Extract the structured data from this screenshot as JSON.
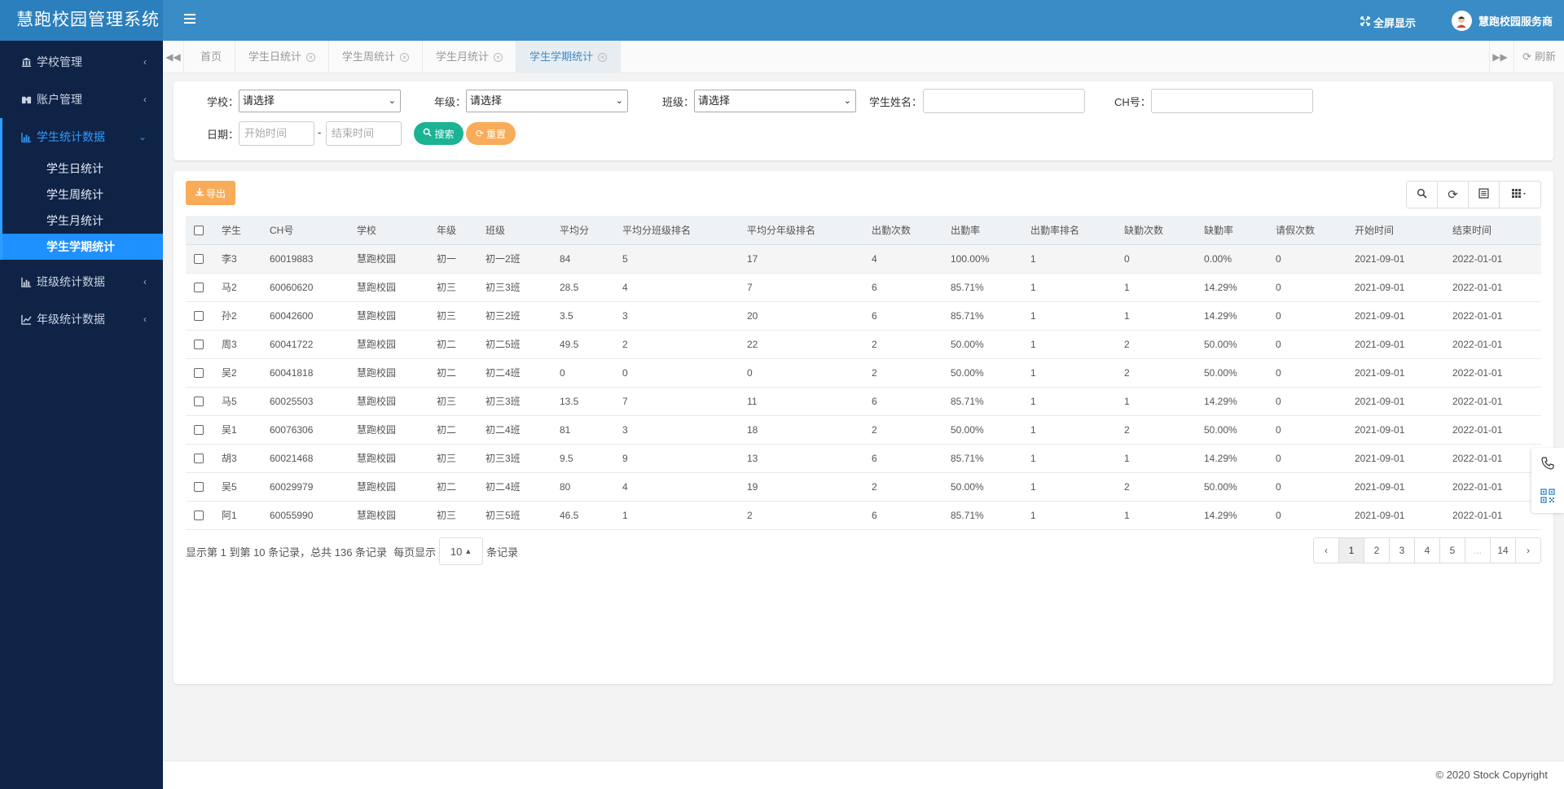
{
  "brand": "慧跑校园管理系统",
  "sidebar": {
    "groups": [
      {
        "label": "学校管理",
        "icon": "bank-icon"
      },
      {
        "label": "账户管理",
        "icon": "binoculars-icon"
      },
      {
        "label": "学生统计数据",
        "icon": "bar-chart-icon"
      },
      {
        "label": "班级统计数据",
        "icon": "bar-chart-icon"
      },
      {
        "label": "年级统计数据",
        "icon": "line-chart-icon"
      }
    ],
    "sub_items": [
      "学生日统计",
      "学生周统计",
      "学生月统计",
      "学生学期统计"
    ]
  },
  "topbar": {
    "fullscreen": "全屏显示",
    "user": "慧跑校园服务商"
  },
  "tabs": [
    "首页",
    "学生日统计",
    "学生周统计",
    "学生月统计",
    "学生学期统计"
  ],
  "refresh_label": "刷新",
  "search": {
    "school_label": "学校：",
    "grade_label": "年级：",
    "class_label": "班级：",
    "name_label": "学生姓名：",
    "ch_label": "CH号：",
    "date_label": "日期：",
    "select_placeholder": "请选择",
    "start_placeholder": "开始时间",
    "end_placeholder": "结束时间",
    "dash": "-",
    "search_btn": "搜索",
    "reset_btn": "重置"
  },
  "export_label": "导出",
  "table": {
    "headers": [
      "学生",
      "CH号",
      "学校",
      "年级",
      "班级",
      "平均分",
      "平均分班级排名",
      "平均分年级排名",
      "出勤次数",
      "出勤率",
      "出勤率排名",
      "缺勤次数",
      "缺勤率",
      "请假次数",
      "开始时间",
      "结束时间"
    ],
    "rows": [
      [
        "李3",
        "60019883",
        "慧跑校园",
        "初一",
        "初一2班",
        "84",
        "5",
        "17",
        "4",
        "100.00%",
        "1",
        "0",
        "0.00%",
        "0",
        "2021-09-01",
        "2022-01-01"
      ],
      [
        "马2",
        "60060620",
        "慧跑校园",
        "初三",
        "初三3班",
        "28.5",
        "4",
        "7",
        "6",
        "85.71%",
        "1",
        "1",
        "14.29%",
        "0",
        "2021-09-01",
        "2022-01-01"
      ],
      [
        "孙2",
        "60042600",
        "慧跑校园",
        "初三",
        "初三2班",
        "3.5",
        "3",
        "20",
        "6",
        "85.71%",
        "1",
        "1",
        "14.29%",
        "0",
        "2021-09-01",
        "2022-01-01"
      ],
      [
        "周3",
        "60041722",
        "慧跑校园",
        "初二",
        "初二5班",
        "49.5",
        "2",
        "22",
        "2",
        "50.00%",
        "1",
        "2",
        "50.00%",
        "0",
        "2021-09-01",
        "2022-01-01"
      ],
      [
        "吴2",
        "60041818",
        "慧跑校园",
        "初二",
        "初二4班",
        "0",
        "0",
        "0",
        "2",
        "50.00%",
        "1",
        "2",
        "50.00%",
        "0",
        "2021-09-01",
        "2022-01-01"
      ],
      [
        "马5",
        "60025503",
        "慧跑校园",
        "初三",
        "初三3班",
        "13.5",
        "7",
        "11",
        "6",
        "85.71%",
        "1",
        "1",
        "14.29%",
        "0",
        "2021-09-01",
        "2022-01-01"
      ],
      [
        "吴1",
        "60076306",
        "慧跑校园",
        "初二",
        "初二4班",
        "81",
        "3",
        "18",
        "2",
        "50.00%",
        "1",
        "2",
        "50.00%",
        "0",
        "2021-09-01",
        "2022-01-01"
      ],
      [
        "胡3",
        "60021468",
        "慧跑校园",
        "初三",
        "初三3班",
        "9.5",
        "9",
        "13",
        "6",
        "85.71%",
        "1",
        "1",
        "14.29%",
        "0",
        "2021-09-01",
        "2022-01-01"
      ],
      [
        "吴5",
        "60029979",
        "慧跑校园",
        "初二",
        "初二4班",
        "80",
        "4",
        "19",
        "2",
        "50.00%",
        "1",
        "2",
        "50.00%",
        "0",
        "2021-09-01",
        "2022-01-01"
      ],
      [
        "阿1",
        "60055990",
        "慧跑校园",
        "初三",
        "初三5班",
        "46.5",
        "1",
        "2",
        "6",
        "85.71%",
        "1",
        "1",
        "14.29%",
        "0",
        "2021-09-01",
        "2022-01-01"
      ]
    ]
  },
  "pagination_info": {
    "prefix": "显示第 1 到第 10 条记录，总共 136 条记录",
    "per_page_label": "每页显示",
    "page_size": "10",
    "suffix": "条记录"
  },
  "pages": [
    "‹",
    "1",
    "2",
    "3",
    "4",
    "5",
    "...",
    "14",
    "›"
  ],
  "footer": "© 2020 Stock Copyright",
  "colors": {
    "sidebar_bg": "#0f2347",
    "topbar_bg": "#3a8cc6",
    "accent": "#1e90ff",
    "search_btn": "#1ab394",
    "reset_btn": "#f8ac59"
  }
}
